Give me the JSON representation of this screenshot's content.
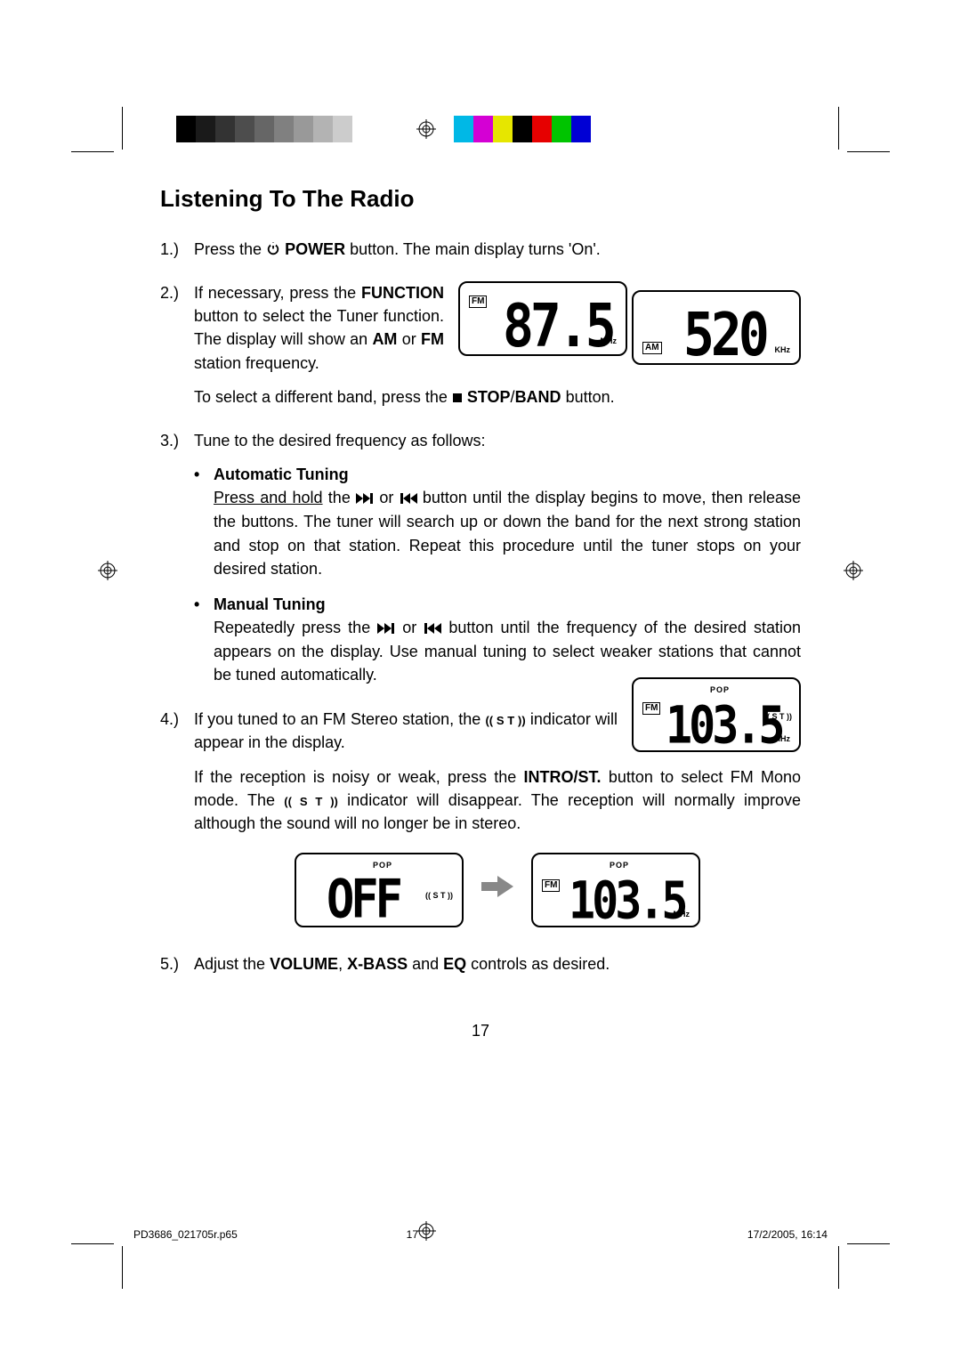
{
  "page": {
    "title": "Listening To The Radio",
    "page_number_display": "17",
    "footer_file": "PD3686_021705r.p65",
    "footer_page": "17",
    "footer_date": "17/2/2005, 16:14"
  },
  "colorbar": {
    "left_grays": [
      "#000000",
      "#1a1a1a",
      "#333333",
      "#4d4d4d",
      "#666666",
      "#808080",
      "#999999",
      "#b3b3b3",
      "#cccccc",
      "#ffffff"
    ],
    "right_colors": [
      "#00b8e6",
      "#d400d4",
      "#e6e600",
      "#000000",
      "#e60000",
      "#00c400",
      "#0000d4",
      "#ffffff"
    ]
  },
  "steps": {
    "s1_num": "1.)",
    "s1_a": "Press the ",
    "s1_power": " POWER",
    "s1_b": " button. The main display turns 'On'.",
    "s2_num": "2.)",
    "s2_a": "If necessary, press the ",
    "s2_func": "FUNCTION",
    "s2_b": " button to select the Tuner function. The display will show an ",
    "s2_am": "AM",
    "s2_c": " or ",
    "s2_fm": "FM",
    "s2_d": " station frequency.",
    "s2_e": "To select a different band, press the ",
    "s2_stop": " STOP",
    "s2_f": "/",
    "s2_band": "BAND",
    "s2_g": " button.",
    "s3_num": "3.)",
    "s3_a": "Tune to the desired frequency as follows:",
    "auto_head": "Automatic Tuning",
    "auto_a": "Press and hold",
    "auto_b": " the ",
    "auto_c": " or ",
    "auto_d": " button until the display begins to move, then release the buttons. The tuner will search up or down the band for the next strong station and stop on that station. Repeat this procedure until the tuner stops on your desired station.",
    "man_head": "Manual Tuning",
    "man_a": "Repeatedly press the ",
    "man_b": " or ",
    "man_c": " button until the frequency of the desired station appears on the display. Use manual tuning to select weaker stations that cannot be tuned automatically.",
    "s4_num": "4.)",
    "s4_a": "If you tuned to an FM Stereo station, the ",
    "s4_b": " indicator will appear in the display.",
    "s4_c": "If the reception is noisy or weak, press the ",
    "s4_intro": "INTRO/ST.",
    "s4_d": " button to select FM Mono mode. The ",
    "s4_e": " indicator will disappear. The reception will normally improve although the sound will no longer be in stereo.",
    "s5_num": "5.)",
    "s5_a": "Adjust the ",
    "s5_vol": "VOLUME",
    "s5_b": ", ",
    "s5_xb": "X-BASS",
    "s5_c": " and ",
    "s5_eq": "EQ",
    "s5_d": " controls as desired."
  },
  "lcd": {
    "fm87": {
      "band": "FM",
      "value": "87.5",
      "unit": "MHz"
    },
    "am520": {
      "band": "AM",
      "value": "520",
      "unit": "KHz"
    },
    "fm1035_st": {
      "band": "FM",
      "value": "103.5",
      "unit": "MHz",
      "pop": "POP",
      "st": "(( S T ))"
    },
    "off": {
      "value": "OFF",
      "pop": "POP",
      "st": "(( S T ))"
    },
    "fm1035": {
      "band": "FM",
      "value": "103.5",
      "unit": "MHz",
      "pop": "POP"
    }
  },
  "icons": {
    "st_label": "(( S T ))"
  }
}
